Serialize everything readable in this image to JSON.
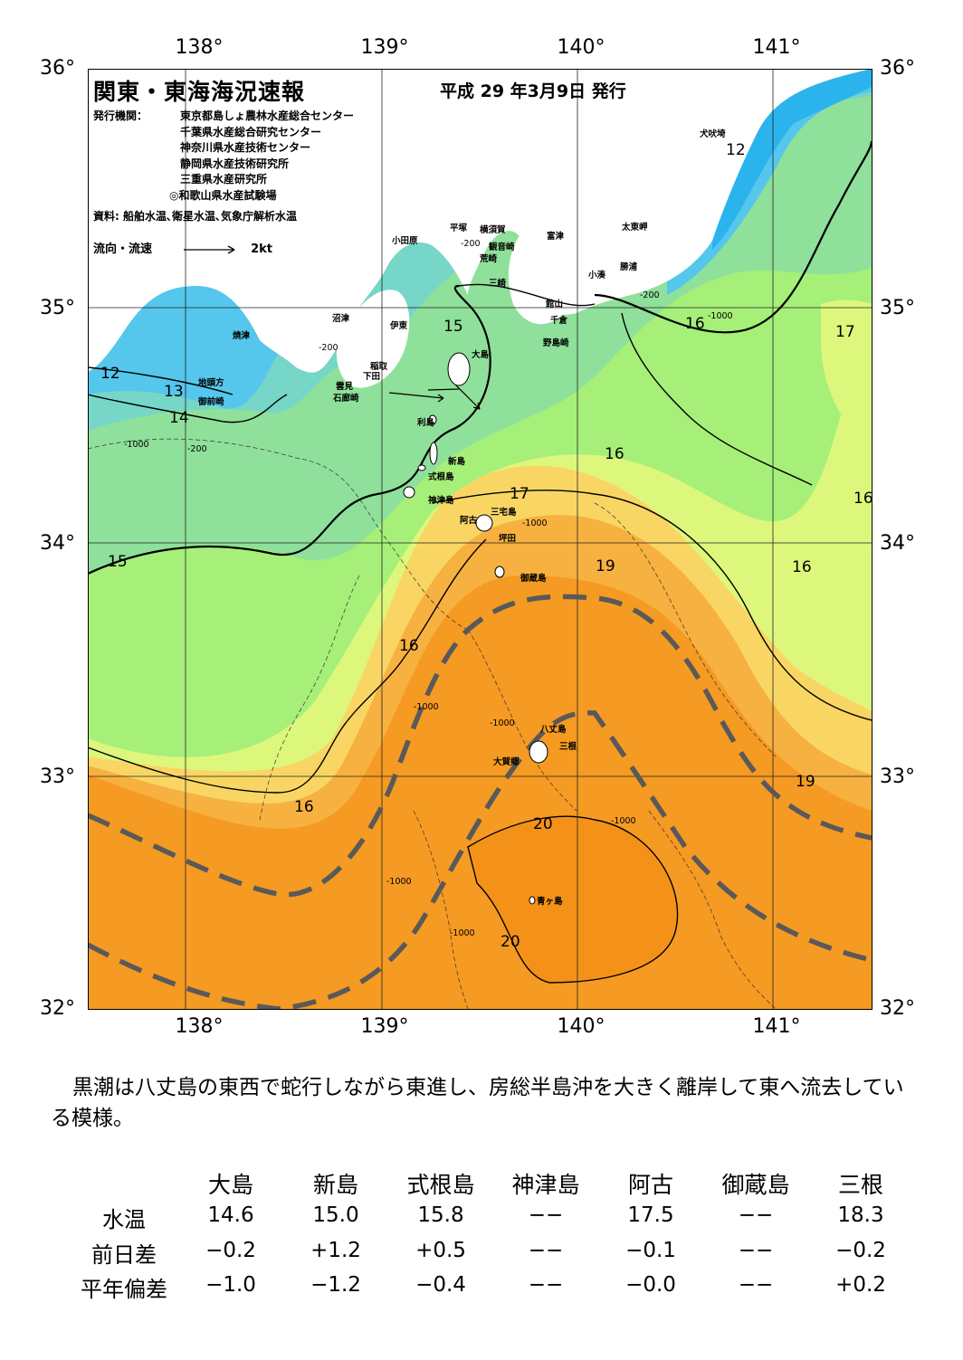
{
  "header": {
    "title": "関東・東海海況速報",
    "issue_date": "平成 29 年3月9日 発行",
    "org_label": "発行機関：",
    "orgs": [
      "東京都島しょ農林水産総合センター",
      "千葉県水産総合研究センター",
      "神奈川県水産技術センター",
      "静岡県水産技術研究所",
      "三重県水産研究所",
      "◎和歌山県水産試験場"
    ],
    "sources": "資料: 船舶水温､衛星水温､気象庁解析水温",
    "flow_legend": "流向・流速",
    "flow_unit": "2kt"
  },
  "map": {
    "lon_ticks": [
      "138°",
      "139°",
      "140°",
      "141°"
    ],
    "lat_ticks": [
      "36°",
      "35°",
      "34°",
      "33°",
      "32°"
    ],
    "colors": {
      "t12": "#2bb3ee",
      "t13": "#55c6ec",
      "t14": "#76d6c8",
      "t15": "#8fe09a",
      "t16": "#a6ef78",
      "t17": "#dcf77c",
      "t18": "#f9d664",
      "t19": "#f7b140",
      "t20": "#f59a22",
      "kuroshio": "#595959",
      "land": "#ffffff"
    },
    "places": {
      "inubozaki": "犬吠埼",
      "taitomisaki": "太東岬",
      "katsuura": "勝浦",
      "kominato": "小湊",
      "tomitsu": "富津",
      "kannonzaki": "観音崎",
      "yokosuka": "横須賀",
      "hiratsuka": "平塚",
      "odawara": "小田原",
      "araizaki": "荒崎",
      "misaki": "三崎",
      "tateyama": "館山",
      "chikura": "千倉",
      "nojimazaki": "野島崎",
      "numazu": "沼津",
      "ito": "伊東",
      "yaizu": "焼津",
      "inatori": "稲取",
      "shimoda": "下田",
      "kumomi": "雲見",
      "irozaki": "石廊崎",
      "jitogata": "地頭方",
      "omaezaki": "御前崎",
      "oshima": "大島",
      "toshima": "利島",
      "niijima": "新島",
      "shikinejima": "式根島",
      "kozushima": "神津島",
      "miyakejima": "三宅島",
      "ako": "阿古",
      "tsubota": "坪田",
      "mikurajima": "御蔵島",
      "hachijojima": "八丈島",
      "mitsune": "三根",
      "okago": "大賀郷",
      "aogashima": "青ヶ島"
    },
    "isotherm_labels": [
      "12",
      "12",
      "13",
      "14",
      "15",
      "15",
      "16",
      "16",
      "16",
      "16",
      "16",
      "16",
      "17",
      "17",
      "19",
      "19",
      "20",
      "20"
    ],
    "depth_labels": [
      "-200",
      "-1000"
    ]
  },
  "summary": "黒潮は八丈島の東西で蛇行しながら東進し、房総半島沖を大きく離岸して東へ流去している模様。",
  "table": {
    "columns": [
      "大島",
      "新島",
      "式根島",
      "神津島",
      "阿古",
      "御蔵島",
      "三根"
    ],
    "rows": [
      {
        "label": "水温",
        "values": [
          "14.6",
          "15.0",
          "15.8",
          "−−",
          "17.5",
          "−−",
          "18.3"
        ]
      },
      {
        "label": "前日差",
        "values": [
          "−0.2",
          "+1.2",
          "+0.5",
          "−−",
          "−0.1",
          "−−",
          "−0.2"
        ]
      },
      {
        "label": "平年偏差",
        "values": [
          "−1.0",
          "−1.2",
          "−0.4",
          "−−",
          "−0.0",
          "−−",
          "+0.2"
        ]
      }
    ]
  }
}
